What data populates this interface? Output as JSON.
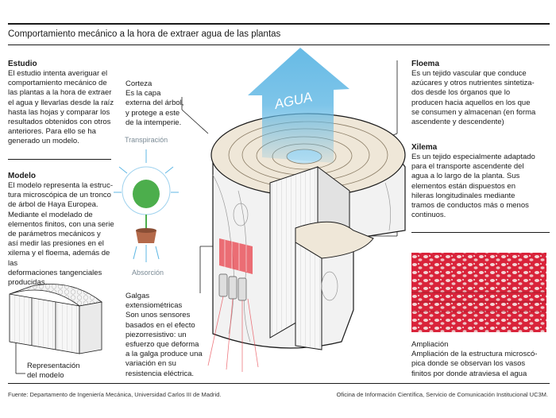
{
  "title": "Comportamiento mecánico a la hora de extraer agua de las plantas",
  "estudio": {
    "heading": "Estudio",
    "lines": [
      "El estudio intenta averiguar el",
      "comportamiento mecánico de",
      "las plantas a la hora de extraer",
      "el agua y llevarlas desde la raíz",
      "hasta las hojas y comparar los",
      "resultados obtenidos con otros",
      "anteriores. Para ello se ha",
      "generado un modelo."
    ]
  },
  "modelo": {
    "heading": "Modelo",
    "lines": [
      "El modelo representa la estruc-",
      "tura microscópica de un tronco",
      "de árbol de Haya Europea.",
      "Mediante el modelado de",
      "elementos finitos, con una serie",
      "de parámetros mecánicos y",
      "así medir las presiones en el",
      "xilema y el floema, además de las",
      "deformaciones tangenciales",
      "producidas."
    ]
  },
  "corteza": {
    "heading": "Corteza",
    "lines": [
      "Es la capa",
      "externa del árbol,",
      "y protege a este",
      "de la intemperie."
    ]
  },
  "plant": {
    "transpiracion": "Transpiración",
    "absorcion": "Absorción"
  },
  "agua_label": "AGUA",
  "floema": {
    "heading": "Floema",
    "lines": [
      "Es un tejido vascular que conduce",
      "azúcares y otros nutrientes sintetiza-",
      "dos desde los órganos que lo",
      "producen hacia aquellos en los que",
      "se consumen y almacenan (en forma",
      "ascendente y descendente)"
    ]
  },
  "xilema": {
    "heading": "Xilema",
    "lines": [
      "Es un tejido especialmente adaptado",
      "para el transporte ascendente del",
      "agua a lo largo de la planta. Sus",
      "elementos están dispuestos en",
      "hileras longitudinales mediante",
      "tramos de conductos más o menos",
      "continuos."
    ]
  },
  "galgas": {
    "heading_lines": [
      "Galgas",
      "extensiométricas"
    ],
    "lines": [
      "Son unos sensores",
      "basados en el efecto",
      "piezorresistivo: un",
      "esfuerzo que deforma",
      "a la galga produce una",
      "variación en su",
      "resistencia eléctrica."
    ]
  },
  "representacion": {
    "lines": [
      "Representación",
      "del modelo"
    ]
  },
  "ampliacion": {
    "heading": "Ampliación",
    "lines": [
      "Ampliación de la estructura microscó-",
      "pica donde se observan los vasos",
      "finitos por donde atraviesa el agua"
    ]
  },
  "footer": {
    "left": "Fuente: Departamento de Ingeniería Mecánica, Universidad Carlos III de Madrid.",
    "right": "Oficina de Información Científica, Servicio de Comunicación Institucional UC3M."
  },
  "colors": {
    "accent_blue": "#5fb7e4",
    "strain_red": "#e8404a",
    "micro_red": "#d9233a",
    "plant_green": "#4cae4c",
    "pot_brown": "#b4694a"
  }
}
